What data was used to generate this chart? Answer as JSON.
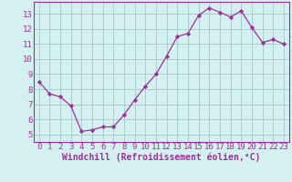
{
  "x": [
    0,
    1,
    2,
    3,
    4,
    5,
    6,
    7,
    8,
    9,
    10,
    11,
    12,
    13,
    14,
    15,
    16,
    17,
    18,
    19,
    20,
    21,
    22,
    23
  ],
  "y": [
    8.5,
    7.7,
    7.5,
    6.9,
    5.2,
    5.3,
    5.5,
    5.5,
    6.3,
    7.3,
    8.2,
    9.0,
    10.2,
    11.5,
    11.7,
    12.9,
    13.4,
    13.1,
    12.8,
    13.2,
    12.1,
    11.1,
    11.3,
    11.0
  ],
  "line_color": "#993399",
  "marker": "D",
  "marker_size": 2.2,
  "bg_color": "#d4f0f0",
  "grid_color": "#aacccc",
  "xlabel": "Windchill (Refroidissement éolien,°C)",
  "xlabel_color": "#993399",
  "xlabel_fontsize": 7,
  "tick_label_color": "#993399",
  "tick_fontsize": 6.5,
  "ytick_values": [
    5,
    6,
    7,
    8,
    9,
    10,
    11,
    12,
    13
  ],
  "ylim": [
    4.5,
    13.8
  ],
  "xlim": [
    -0.5,
    23.5
  ],
  "spine_color": "#993399",
  "linewidth": 0.9
}
